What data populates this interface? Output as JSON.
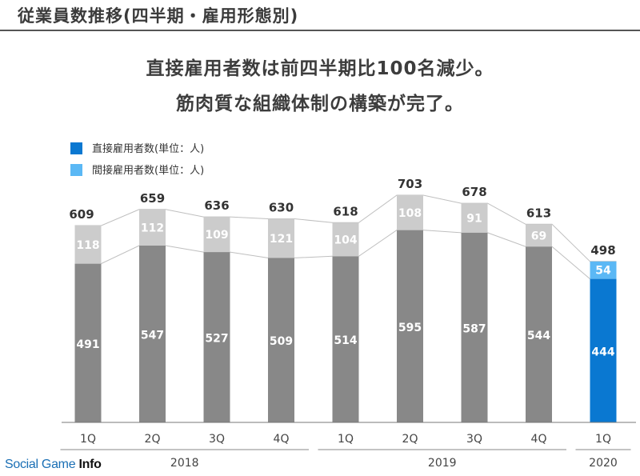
{
  "slide_title": "従業員数推移(四半期・雇用形態別)",
  "headline": [
    "直接雇用者数は前四半期比100名減少。",
    "筋肉質な組織体制の構築が完了。"
  ],
  "watermark": {
    "brand": "Social Game ",
    "suffix": "Info"
  },
  "colors": {
    "direct_past": "#888888",
    "indirect_past": "#cccccc",
    "direct_current": "#0a78d1",
    "indirect_current": "#5bb8f5",
    "connector": "#bfbfbf"
  },
  "chart_data": {
    "type": "bar",
    "stacked": true,
    "categories": [
      "1Q",
      "2Q",
      "3Q",
      "4Q",
      "1Q",
      "2Q",
      "3Q",
      "4Q",
      "1Q"
    ],
    "year_groups": [
      {
        "label": "2018",
        "from": 0,
        "to": 3
      },
      {
        "label": "2019",
        "from": 4,
        "to": 7
      },
      {
        "label": "2020",
        "from": 8,
        "to": 8
      }
    ],
    "series": [
      {
        "name": "直接雇用者数(単位：人)",
        "values": [
          491,
          547,
          527,
          509,
          514,
          595,
          587,
          544,
          444
        ]
      },
      {
        "name": "間接雇用者数(単位：人)",
        "values": [
          118,
          112,
          109,
          121,
          104,
          108,
          91,
          69,
          54
        ]
      }
    ],
    "totals": [
      609,
      659,
      636,
      630,
      618,
      703,
      678,
      613,
      498
    ],
    "highlight_index": 8,
    "legend_position": "top-left",
    "ylim": [
      0,
      720
    ],
    "grid": false
  }
}
